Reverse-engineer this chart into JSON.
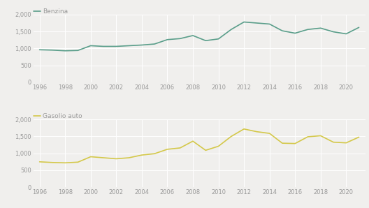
{
  "benzina": {
    "label": "Benzina",
    "color": "#5a9e8a",
    "years": [
      1996,
      1997,
      1998,
      1999,
      2000,
      2001,
      2002,
      2003,
      2004,
      2005,
      2006,
      2007,
      2008,
      2009,
      2010,
      2011,
      2012,
      2013,
      2014,
      2015,
      2016,
      2017,
      2018,
      2019,
      2020,
      2021
    ],
    "values": [
      960,
      950,
      930,
      940,
      1080,
      1060,
      1060,
      1080,
      1100,
      1130,
      1260,
      1290,
      1380,
      1230,
      1280,
      1560,
      1780,
      1750,
      1720,
      1520,
      1450,
      1560,
      1600,
      1490,
      1430,
      1620
    ]
  },
  "gasolio": {
    "label": "Gasolio auto",
    "color": "#d4c84a",
    "years": [
      1996,
      1997,
      1998,
      1999,
      2000,
      2001,
      2002,
      2003,
      2004,
      2005,
      2006,
      2007,
      2008,
      2009,
      2010,
      2011,
      2012,
      2013,
      2014,
      2015,
      2016,
      2017,
      2018,
      2019,
      2020,
      2021
    ],
    "values": [
      750,
      730,
      720,
      740,
      900,
      870,
      840,
      870,
      950,
      990,
      1120,
      1160,
      1360,
      1090,
      1210,
      1500,
      1720,
      1640,
      1590,
      1300,
      1290,
      1490,
      1520,
      1330,
      1310,
      1480
    ]
  },
  "ylim": [
    0,
    2000
  ],
  "yticks": [
    0,
    500,
    1000,
    1500,
    2000
  ],
  "ytick_labels": [
    "0",
    "500",
    "1,000",
    "1,500",
    "2,000"
  ],
  "xticks": [
    1996,
    1998,
    2000,
    2002,
    2004,
    2006,
    2008,
    2010,
    2012,
    2014,
    2016,
    2018,
    2020
  ],
  "background_color": "#f0efed",
  "line_width": 1.2,
  "legend_fontsize": 6.5,
  "tick_fontsize": 6.0,
  "grid_color": "#ffffff",
  "grid_linewidth": 0.7,
  "label_color": "#999999"
}
